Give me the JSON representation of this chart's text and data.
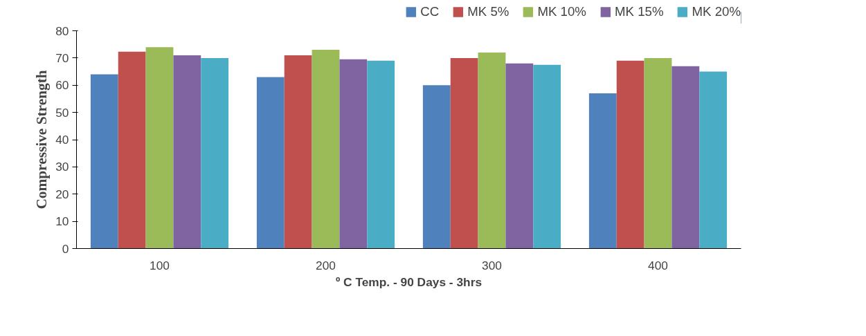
{
  "chart_data": {
    "type": "bar",
    "xlabel": "º C Temp. - 90 Days - 3hrs",
    "ylabel": "Compressive Strength",
    "categories": [
      "100",
      "200",
      "300",
      "400"
    ],
    "series": [
      {
        "name": "CC",
        "color": "#4f81bd",
        "values": [
          64,
          63,
          60,
          57
        ]
      },
      {
        "name": "MK 5%",
        "color": "#c0504d",
        "values": [
          72.3,
          71,
          70,
          69
        ]
      },
      {
        "name": "MK 10%",
        "color": "#9bbb59",
        "values": [
          74,
          73,
          72,
          70
        ]
      },
      {
        "name": "MK 15%",
        "color": "#8064a2",
        "values": [
          71,
          69.5,
          68,
          67
        ]
      },
      {
        "name": "MK 20%",
        "color": "#4bacc6",
        "values": [
          70,
          69,
          67.5,
          65
        ]
      }
    ],
    "ylim": [
      0,
      80
    ],
    "yticks": [
      0,
      10,
      20,
      30,
      40,
      50,
      60,
      70,
      80
    ],
    "grid": false,
    "legend": "top right"
  }
}
